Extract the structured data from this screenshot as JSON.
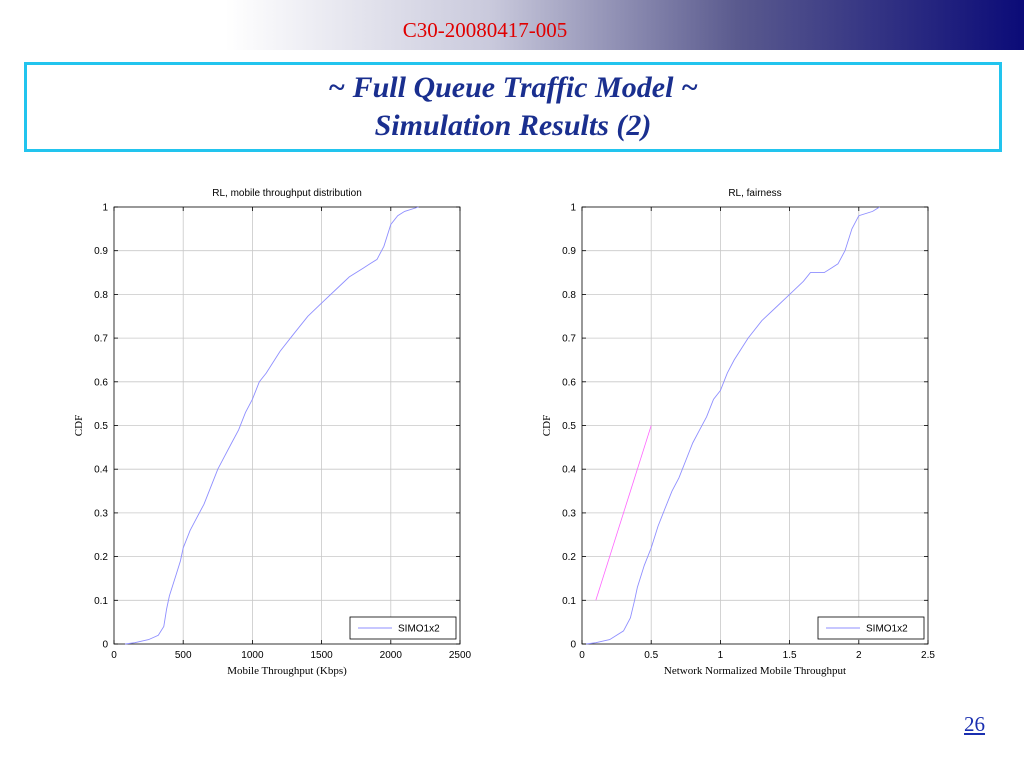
{
  "header": {
    "doc_id": "C30-20080417-005"
  },
  "slide": {
    "title_line1": "~ Full Queue Traffic Model ~",
    "title_line2": "Simulation Results (2)",
    "page_number": "26"
  },
  "colors": {
    "title_text": "#1a2f8f",
    "doc_id": "#e00000",
    "title_border": "#22c4ee",
    "cdf_line": "#8f8fff",
    "ref_line": "#ff66ff"
  },
  "chart_data": [
    {
      "type": "line",
      "title": "RL, mobile throughput distribution",
      "xlabel": "Mobile Throughput (Kbps)",
      "ylabel": "CDF",
      "xlim": [
        0,
        2500
      ],
      "ylim": [
        0,
        1
      ],
      "xticks": [
        0,
        500,
        1000,
        1500,
        2000,
        2500
      ],
      "yticks": [
        0,
        0.1,
        0.2,
        0.3,
        0.4,
        0.5,
        0.6,
        0.7,
        0.8,
        0.9,
        1
      ],
      "grid": true,
      "legend": {
        "entries": [
          "SIMO1x2"
        ],
        "placement": "bottom-right"
      },
      "series": [
        {
          "name": "SIMO1x2",
          "x": [
            80,
            150,
            250,
            320,
            360,
            380,
            400,
            450,
            480,
            500,
            550,
            600,
            650,
            700,
            750,
            800,
            850,
            900,
            950,
            1000,
            1050,
            1100,
            1200,
            1300,
            1400,
            1500,
            1600,
            1700,
            1800,
            1850,
            1900,
            1950,
            2000,
            2050,
            2100,
            2200
          ],
          "y": [
            0,
            0.003,
            0.01,
            0.02,
            0.04,
            0.08,
            0.11,
            0.16,
            0.19,
            0.22,
            0.26,
            0.29,
            0.32,
            0.36,
            0.4,
            0.43,
            0.46,
            0.49,
            0.53,
            0.56,
            0.6,
            0.62,
            0.67,
            0.71,
            0.75,
            0.78,
            0.81,
            0.84,
            0.86,
            0.87,
            0.88,
            0.91,
            0.96,
            0.98,
            0.99,
            1.0
          ]
        }
      ]
    },
    {
      "type": "line",
      "title": "RL, fairness",
      "xlabel": "Network Normalized Mobile Throughput",
      "ylabel": "CDF",
      "xlim": [
        0,
        2.5
      ],
      "ylim": [
        0,
        1
      ],
      "xticks": [
        0,
        0.5,
        1,
        1.5,
        2,
        2.5
      ],
      "yticks": [
        0,
        0.1,
        0.2,
        0.3,
        0.4,
        0.5,
        0.6,
        0.7,
        0.8,
        0.9,
        1
      ],
      "grid": true,
      "legend": {
        "entries": [
          "SIMO1x2"
        ],
        "placement": "bottom-right"
      },
      "series": [
        {
          "name": "SIMO1x2",
          "x": [
            0.03,
            0.1,
            0.2,
            0.3,
            0.35,
            0.38,
            0.4,
            0.45,
            0.5,
            0.55,
            0.6,
            0.65,
            0.7,
            0.75,
            0.8,
            0.85,
            0.9,
            0.95,
            1.0,
            1.05,
            1.1,
            1.2,
            1.3,
            1.4,
            1.5,
            1.6,
            1.65,
            1.7,
            1.75,
            1.8,
            1.85,
            1.9,
            1.95,
            2.0,
            2.1,
            2.15
          ],
          "y": [
            0,
            0.003,
            0.01,
            0.03,
            0.06,
            0.1,
            0.13,
            0.18,
            0.22,
            0.27,
            0.31,
            0.35,
            0.38,
            0.42,
            0.46,
            0.49,
            0.52,
            0.56,
            0.58,
            0.62,
            0.65,
            0.7,
            0.74,
            0.77,
            0.8,
            0.83,
            0.85,
            0.85,
            0.85,
            0.86,
            0.87,
            0.9,
            0.95,
            0.98,
            0.99,
            1.0
          ]
        }
      ],
      "reference_line": {
        "x": [
          0.1,
          0.5
        ],
        "y": [
          0.1,
          0.5
        ]
      }
    }
  ]
}
